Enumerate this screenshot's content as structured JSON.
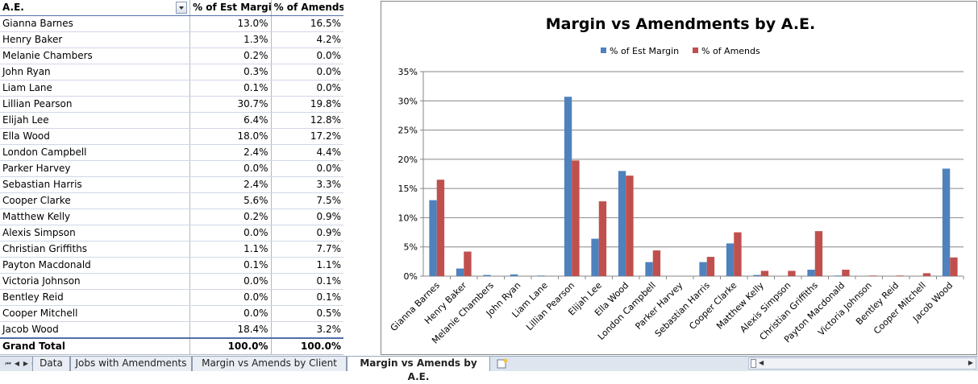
{
  "table": {
    "headers": [
      "A.E.",
      "% of Est Margin",
      "% of Amends"
    ],
    "rows": [
      [
        "Gianna Barnes",
        "13.0%",
        "16.5%"
      ],
      [
        "Henry Baker",
        "1.3%",
        "4.2%"
      ],
      [
        "Melanie Chambers",
        "0.2%",
        "0.0%"
      ],
      [
        "John Ryan",
        "0.3%",
        "0.0%"
      ],
      [
        "Liam Lane",
        "0.1%",
        "0.0%"
      ],
      [
        "Lillian Pearson",
        "30.7%",
        "19.8%"
      ],
      [
        "Elijah Lee",
        "6.4%",
        "12.8%"
      ],
      [
        "Ella Wood",
        "18.0%",
        "17.2%"
      ],
      [
        "London Campbell",
        "2.4%",
        "4.4%"
      ],
      [
        "Parker Harvey",
        "0.0%",
        "0.0%"
      ],
      [
        "Sebastian Harris",
        "2.4%",
        "3.3%"
      ],
      [
        "Cooper Clarke",
        "5.6%",
        "7.5%"
      ],
      [
        "Matthew Kelly",
        "0.2%",
        "0.9%"
      ],
      [
        "Alexis Simpson",
        "0.0%",
        "0.9%"
      ],
      [
        "Christian Griffiths",
        "1.1%",
        "7.7%"
      ],
      [
        "Payton Macdonald",
        "0.1%",
        "1.1%"
      ],
      [
        "Victoria Johnson",
        "0.0%",
        "0.1%"
      ],
      [
        "Bentley Reid",
        "0.0%",
        "0.1%"
      ],
      [
        "Cooper Mitchell",
        "0.0%",
        "0.5%"
      ],
      [
        "Jacob Wood",
        "18.4%",
        "3.2%"
      ]
    ],
    "total": [
      "Grand Total",
      "100.0%",
      "100.0%"
    ]
  },
  "chart_data": {
    "type": "bar",
    "title": "Margin vs Amendments by A.E.",
    "categories": [
      "Gianna Barnes",
      "Henry Baker",
      "Melanie Chambers",
      "John Ryan",
      "Liam Lane",
      "Lillian Pearson",
      "Elijah Lee",
      "Ella Wood",
      "London Campbell",
      "Parker Harvey",
      "Sebastian Harris",
      "Cooper Clarke",
      "Matthew Kelly",
      "Alexis Simpson",
      "Christian Griffiths",
      "Payton Macdonald",
      "Victoria Johnson",
      "Bentley Reid",
      "Cooper Mitchell",
      "Jacob Wood"
    ],
    "series": [
      {
        "name": "% of Est Margin",
        "color": "#4f81bd",
        "values": [
          13.0,
          1.3,
          0.2,
          0.3,
          0.1,
          30.7,
          6.4,
          18.0,
          2.4,
          0.0,
          2.4,
          5.6,
          0.2,
          0.0,
          1.1,
          0.1,
          0.0,
          0.0,
          0.0,
          18.4
        ]
      },
      {
        "name": "% of Amends",
        "color": "#c0504d",
        "values": [
          16.5,
          4.2,
          0.0,
          0.0,
          0.0,
          19.8,
          12.8,
          17.2,
          4.4,
          0.0,
          3.3,
          7.5,
          0.9,
          0.9,
          7.7,
          1.1,
          0.1,
          0.1,
          0.5,
          3.2
        ]
      }
    ],
    "ylim": [
      0,
      35
    ],
    "yticks": [
      "0%",
      "5%",
      "10%",
      "15%",
      "20%",
      "25%",
      "30%",
      "35%"
    ],
    "ytick_values": [
      0,
      5,
      10,
      15,
      20,
      25,
      30,
      35
    ],
    "legend": "top",
    "grid": true
  },
  "sheet_tabs": {
    "tabs": [
      "Data",
      "Jobs with Amendments",
      "Margin vs Amends by Client",
      "Margin vs Amends by A.E."
    ],
    "active": "Margin vs Amends by A.E."
  }
}
